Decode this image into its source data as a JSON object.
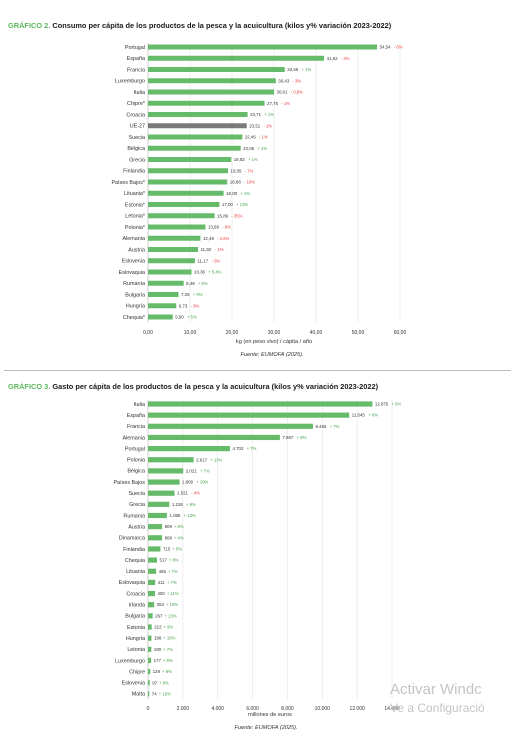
{
  "chart_data": [
    {
      "type": "bar",
      "orientation": "horizontal",
      "title_prefix": "GRÁFICO 2.",
      "title": "Consumo per cápita de los productos de la pesca y la acuicultura (kilos y% variación 2023-2022)",
      "categories": [
        "Portugal",
        "España",
        "Francia",
        "Luxemburgo",
        "Italia",
        "Chipre*",
        "Croacia",
        "UE-27",
        "Suecia",
        "Bélgica",
        "Grecia",
        "Finlandia",
        "Países Bajos*",
        "Lituania*",
        "Estonia*",
        "Letonia*",
        "Polonia*",
        "Alemania",
        "Austria",
        "Eslovenia",
        "Eslovaquia",
        "Rumanía",
        "Bulgaria",
        "Hungría",
        "Chequia*"
      ],
      "values": [
        54.54,
        41.92,
        32.56,
        30.43,
        30.01,
        27.75,
        23.71,
        23.51,
        22.46,
        22.06,
        19.82,
        19.05,
        18.88,
        18.0,
        17.0,
        15.86,
        13.68,
        12.49,
        11.92,
        11.17,
        10.36,
        8.49,
        7.26,
        6.73,
        5.9
      ],
      "value_labels": [
        "54,54",
        "41,92",
        "32,56",
        "30,43",
        "30,01",
        "27,75",
        "23,71",
        "23,51",
        "22,46",
        "22,06",
        "19,82",
        "19,05",
        "18,88",
        "18,00",
        "17,00",
        "15,86",
        "13,68",
        "12,49",
        "11,92",
        "11,17",
        "10,36",
        "8,49",
        "7,26",
        "6,73",
        "5,90"
      ],
      "changes": [
        "- 6%",
        "- 3%",
        "+ 1%",
        "- 3%",
        "- 0,6%",
        "- 1%",
        "+ 1%",
        "- 1%",
        "- 1%",
        "+ 1%",
        "+ 1%",
        "- 7%",
        "- 10%",
        "+ 1%",
        "+ 13%",
        "- 35%",
        "- 6%",
        "- 2,6%",
        "- 1%",
        "- 5%",
        "+ 5,4%",
        "+ 5%",
        "+ 0%",
        "- 3%",
        "+ 5%"
      ],
      "highlight_category": "UE-27",
      "x_ticks": [
        "0,00",
        "10,00",
        "20,00",
        "30,00",
        "40,00",
        "50,00",
        "60,00"
      ],
      "xlim": [
        0,
        60
      ],
      "xlabel": "kg (en peso vivo) / cápita / año",
      "grid": true,
      "source": "Fuente: EUMOFA (2025)."
    },
    {
      "type": "bar",
      "orientation": "horizontal",
      "title_prefix": "GRÁFICO 3.",
      "title": "Gasto per cápita de los productos de la pesca y la acuicultura (kilos y% variación 2023-2022)",
      "categories": [
        "Italia",
        "España",
        "Francia",
        "Alemania",
        "Portugal",
        "Polonia",
        "Bélgica",
        "Países Bajos",
        "Suecia",
        "Grecia",
        "Rumania",
        "Austria",
        "Dinamarca",
        "Finlandia",
        "Chequia",
        "Lituania",
        "Eslovaquia",
        "Croacia",
        "Irlanda",
        "Bulgaria",
        "Estonia",
        "Hungría",
        "Letonia",
        "Luxemburgo",
        "Chipre",
        "Eslovenia",
        "Malta"
      ],
      "values": [
        12875,
        11545,
        9466,
        7567,
        4702,
        2617,
        2021,
        1809,
        1521,
        1226,
        1085,
        809,
        808,
        715,
        517,
        465,
        411,
        400,
        354,
        267,
        212,
        198,
        190,
        177,
        129,
        97,
        74
      ],
      "value_labels": [
        "12.875",
        "11.545",
        "9.466",
        "7.567",
        "4.702",
        "2.617",
        "2.021",
        "1.809",
        "1.521",
        "1.226",
        "1.085",
        "809",
        "808",
        "715",
        "517",
        "465",
        "411",
        "400",
        "354",
        "267",
        "212",
        "198",
        "190",
        "177",
        "129",
        "97",
        "74"
      ],
      "changes": [
        "+ 6%",
        "+ 6%",
        "+ 7%",
        "+ 8%",
        "+ 7%",
        "+ 13%",
        "+ 7%",
        "+ 10%",
        "- 4%",
        "+ 6%",
        "+ 13%",
        "+ 8%",
        "+ 4%",
        "+ 5%",
        "+ 8%",
        "+ 7%",
        "+ 7%",
        "+ 11%",
        "+ 10%",
        "+ 13%",
        "+ 9%",
        "+ 16%",
        "+ 7%",
        "+ 8%",
        "+ 8%",
        "+ 8%",
        "+ 16%"
      ],
      "x_ticks": [
        "0",
        "2.000",
        "4.000",
        "6.000",
        "8.000",
        "10.000",
        "12.000",
        "14.000"
      ],
      "xlim": [
        0,
        14000
      ],
      "xlabel": "millones de euros",
      "grid": true,
      "source": "Fuente: EUMOFA (2025)."
    }
  ],
  "colors": {
    "bar": "#66bb6a",
    "highlight_bar": "#7a7a7a",
    "highlight_label": "#4a90d9",
    "positive": "#43a047",
    "negative": "#e53935",
    "accent_prefix": "#5cb85c"
  },
  "watermark": {
    "line1": "Activar Windc",
    "line2": "Ve a Configuració"
  }
}
